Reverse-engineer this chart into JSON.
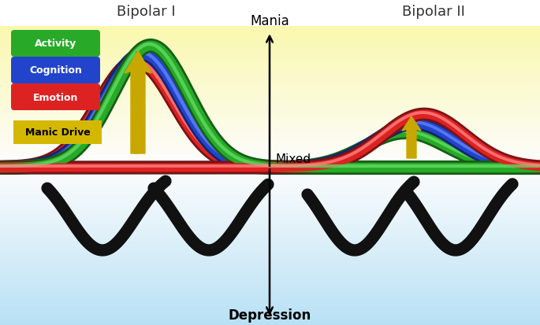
{
  "title_bipolar1": "Bipolar I",
  "title_bipolar2": "Bipolar II",
  "label_mania": "Mania",
  "label_mixed": "Mixed",
  "label_depression": "Depression",
  "legend_items": [
    {
      "label": "Activity",
      "color": "#28aa28"
    },
    {
      "label": "Cognition",
      "color": "#2244cc"
    },
    {
      "label": "Emotion",
      "color": "#dd2222"
    },
    {
      "label": "Manic Drive",
      "color": "#d4b800"
    }
  ],
  "arrow_color": "#c8a800",
  "bg_yellow": "#f5f0a0",
  "bg_white": "#ffffff",
  "bg_blue": "#c0dff0"
}
